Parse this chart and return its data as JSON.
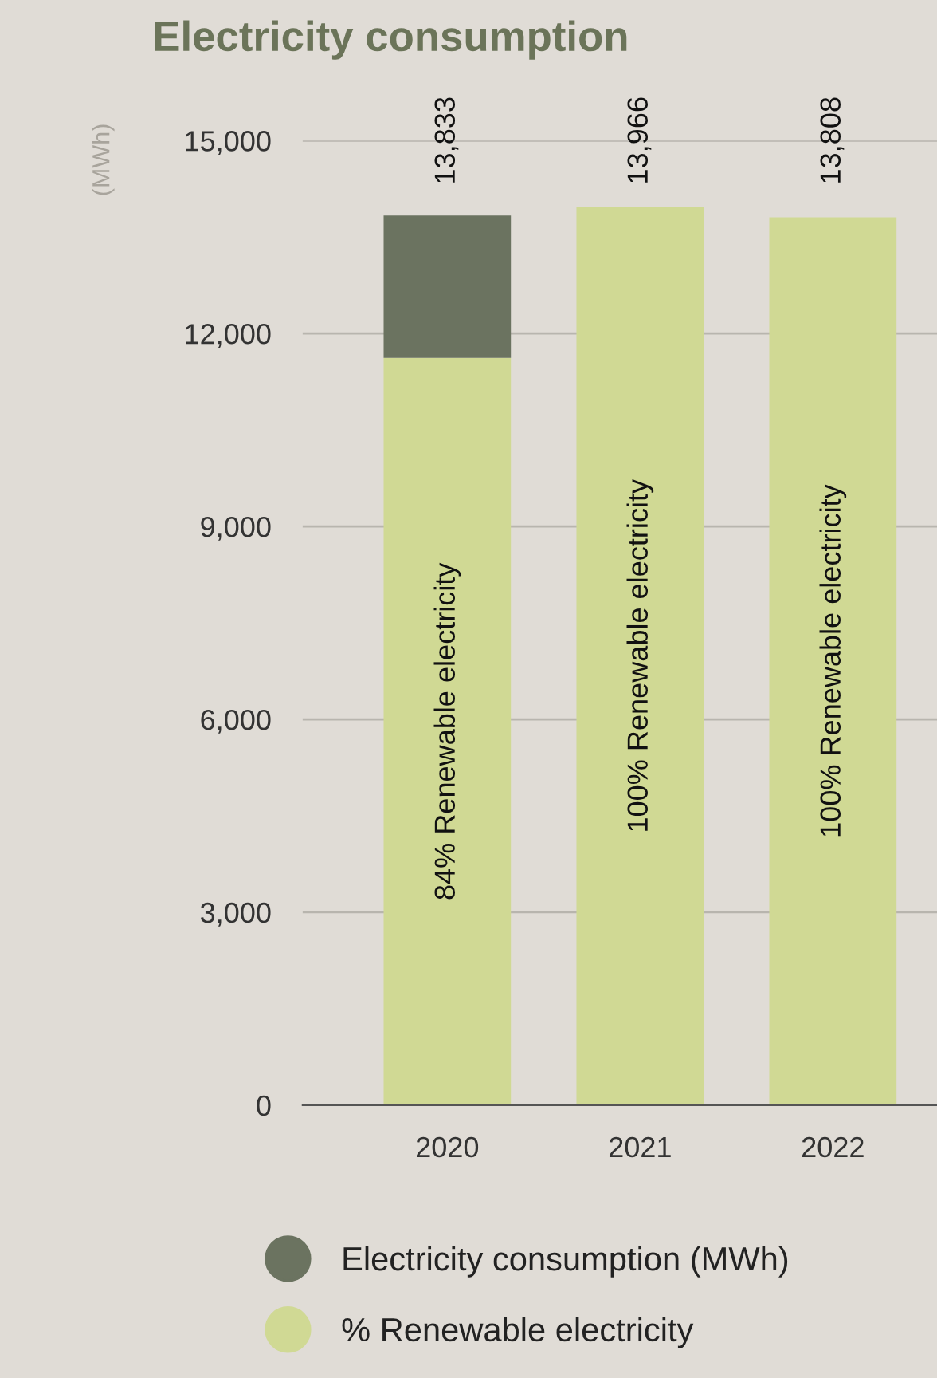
{
  "chart_data": {
    "type": "bar",
    "title": "Electricity consumption",
    "ylabel": "(MWh)",
    "categories": [
      "2020",
      "2021",
      "2022"
    ],
    "stacked": true,
    "series": [
      {
        "name": "% Renewable electricity",
        "color": "#d0d994",
        "values": [
          11620,
          13966,
          13808
        ]
      },
      {
        "name": "Electricity consumption (MWh)",
        "color": "#6b7360",
        "values": [
          2213,
          0,
          0
        ]
      }
    ],
    "annotations": [
      "84% Renewable electricity",
      "100% Renewable electricity",
      "100% Renewable electricity"
    ],
    "totals": [
      "13,833",
      "13,966",
      "13,808"
    ],
    "ylim": [
      0,
      15000
    ],
    "yticks": [
      {
        "value": 0,
        "label": "0"
      },
      {
        "value": 3000,
        "label": "3,000"
      },
      {
        "value": 6000,
        "label": "6,000"
      },
      {
        "value": 9000,
        "label": "9,000"
      },
      {
        "value": 12000,
        "label": "12,000"
      },
      {
        "value": 15000,
        "label": "15,000"
      }
    ],
    "grid": "y",
    "legend": "bottom"
  }
}
